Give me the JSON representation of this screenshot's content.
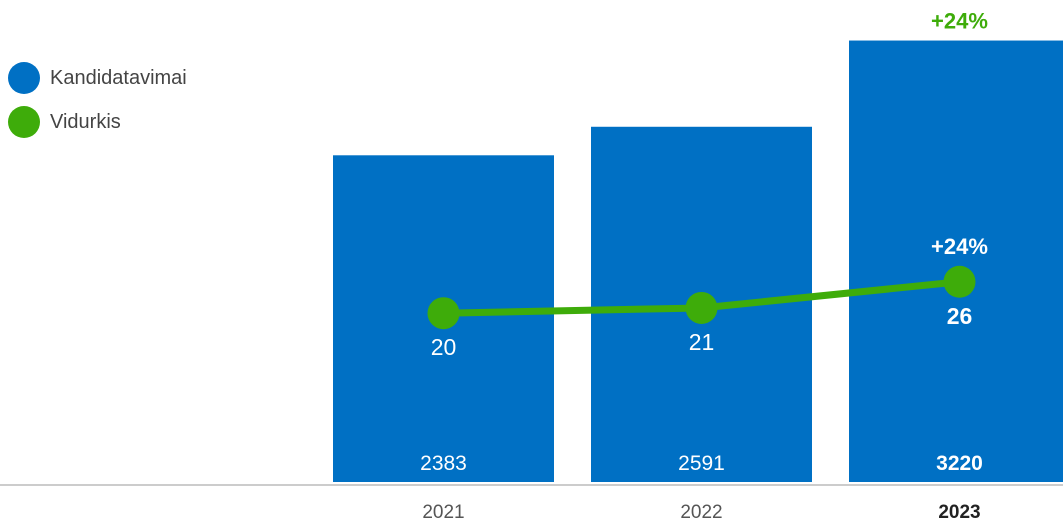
{
  "chart_data": {
    "type": "bar",
    "categories": [
      "2021",
      "2022",
      "2023"
    ],
    "highlight_category": "2023",
    "series": [
      {
        "name": "Kandidatavimai",
        "type": "bar",
        "values": [
          2383,
          2591,
          3220
        ],
        "labels": [
          "2383",
          "2591",
          "3220"
        ],
        "color": "#0070c4"
      },
      {
        "name": "Vidurkis",
        "type": "line",
        "values": [
          20,
          21,
          26
        ],
        "labels": [
          "20",
          "21",
          "26"
        ],
        "color": "#3eac0a"
      }
    ],
    "annotations": [
      {
        "text": "+24%",
        "series": "Kandidatavimai",
        "category": "2023",
        "color": "#3eac0a"
      },
      {
        "text": "+24%",
        "series": "Vidurkis",
        "category": "2023",
        "color": "#ffffff"
      }
    ],
    "legend": {
      "position": "top-left"
    },
    "grid": false
  }
}
